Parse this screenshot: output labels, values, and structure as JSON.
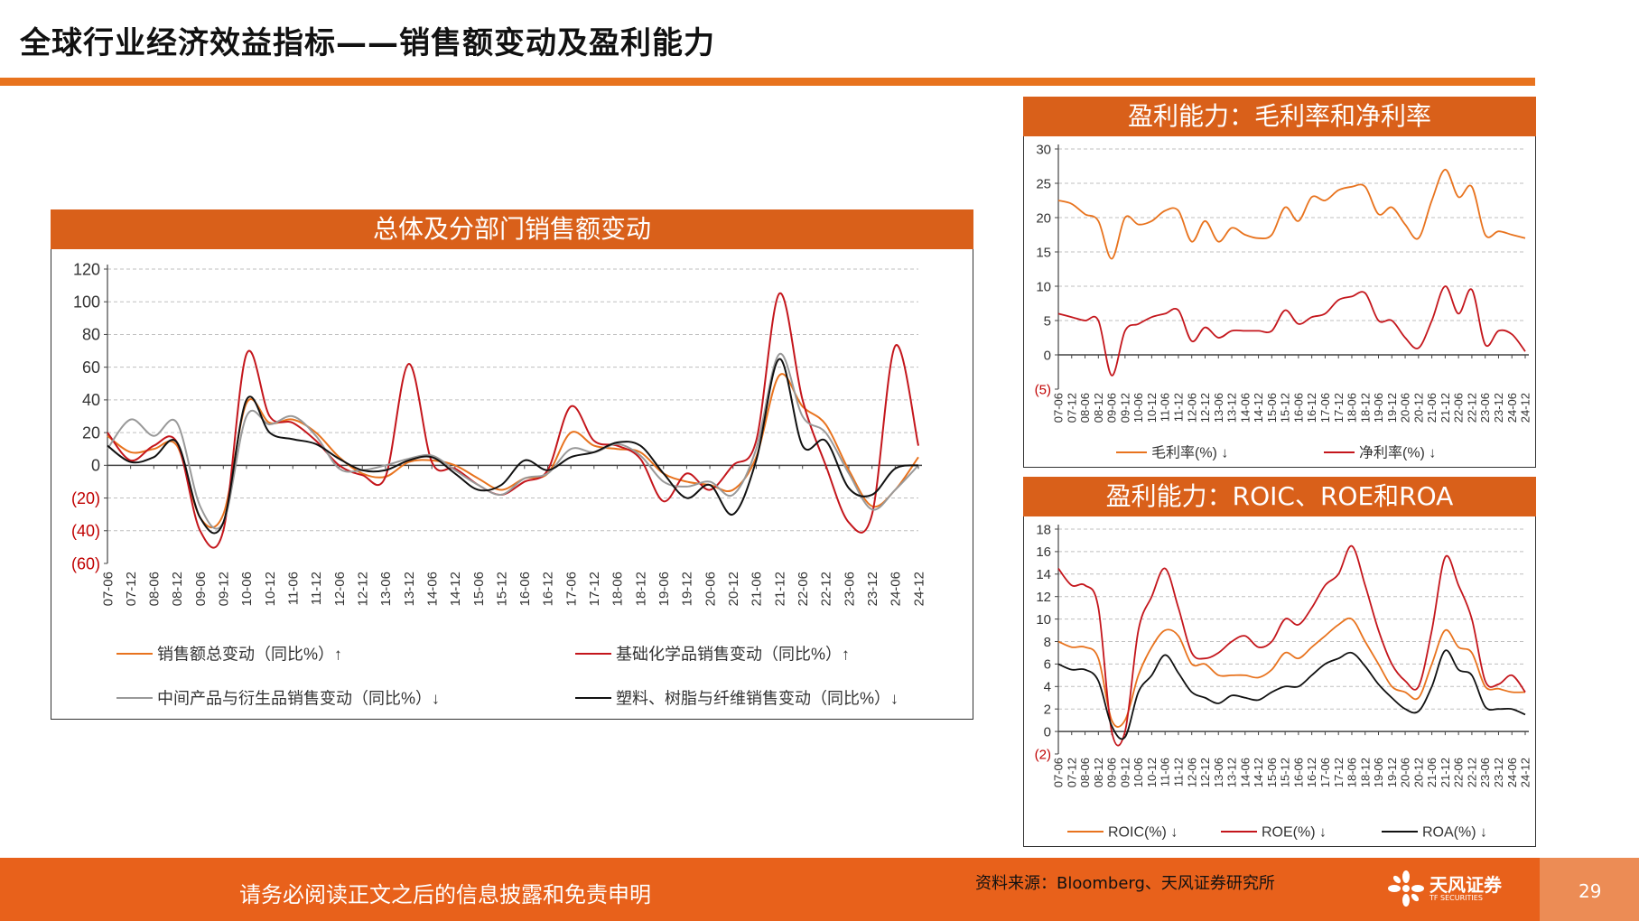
{
  "page": {
    "title": "全球行业经济效益指标——销售额变动及盈利能力",
    "footer_disclaimer": "请务必阅读正文之后的信息披露和免责申明",
    "source": "资料来源：Bloomberg、天风证券研究所",
    "logo_cn": "天风证券",
    "logo_en": "TF SECURITIES",
    "page_number": "29",
    "colors": {
      "accent": "#e8731e",
      "header": "#d9601a",
      "footer": "#e8611b"
    }
  },
  "chart_data": [
    {
      "id": "sales",
      "type": "line",
      "title": "总体及分部门销售额变动",
      "x": [
        "07-06",
        "07-12",
        "08-06",
        "08-12",
        "09-06",
        "09-12",
        "10-06",
        "10-12",
        "11-06",
        "11-12",
        "12-06",
        "12-12",
        "13-06",
        "13-12",
        "14-06",
        "14-12",
        "15-06",
        "15-12",
        "16-06",
        "16-12",
        "17-06",
        "17-12",
        "18-06",
        "18-12",
        "19-06",
        "19-12",
        "20-06",
        "20-12",
        "21-06",
        "21-12",
        "22-06",
        "22-12",
        "23-06",
        "23-12",
        "24-06",
        "24-12"
      ],
      "y_ticks": [
        "120",
        "100",
        "80",
        "60",
        "40",
        "20",
        "0",
        "(20)",
        "(40)",
        "(60)"
      ],
      "ylim": [
        -60,
        120
      ],
      "series": [
        {
          "name": "销售额总变动（同比%）↑",
          "color": "#e8731e",
          "values": [
            18,
            8,
            10,
            12,
            -32,
            -30,
            38,
            26,
            28,
            20,
            5,
            -5,
            -7,
            2,
            3,
            0,
            -8,
            -15,
            -8,
            -5,
            20,
            12,
            10,
            8,
            -5,
            -10,
            -12,
            -15,
            5,
            55,
            36,
            25,
            -3,
            -25,
            -15,
            5
          ]
        },
        {
          "name": "基础化学品销售变动（同比%）↑",
          "color": "#c4161c",
          "values": [
            20,
            3,
            12,
            14,
            -40,
            -40,
            68,
            30,
            26,
            15,
            0,
            -6,
            -7,
            62,
            2,
            -2,
            -12,
            -18,
            -10,
            -3,
            36,
            15,
            12,
            4,
            -22,
            -5,
            -15,
            0,
            15,
            105,
            40,
            0,
            -35,
            -30,
            73,
            12
          ]
        },
        {
          "name": "中间产品与衍生品销售变动（同比%）↓",
          "color": "#999999",
          "values": [
            10,
            28,
            18,
            26,
            -25,
            -35,
            30,
            25,
            30,
            18,
            -2,
            -3,
            0,
            4,
            6,
            -3,
            -12,
            -18,
            -8,
            -5,
            10,
            8,
            13,
            6,
            -10,
            -13,
            -10,
            -18,
            10,
            68,
            30,
            20,
            -5,
            -27,
            -15,
            0
          ]
        },
        {
          "name": "塑料、树脂与纤维销售变动（同比%）↓",
          "color": "#111111",
          "values": [
            12,
            2,
            5,
            14,
            -32,
            -35,
            40,
            20,
            16,
            13,
            4,
            -3,
            -3,
            3,
            5,
            -5,
            -15,
            -12,
            3,
            -3,
            5,
            8,
            14,
            12,
            -5,
            -20,
            -12,
            -30,
            3,
            65,
            12,
            15,
            -14,
            -18,
            -2,
            0
          ]
        }
      ]
    },
    {
      "id": "margins",
      "type": "line",
      "title": "盈利能力：毛利率和净利率",
      "x": [
        "07-06",
        "07-12",
        "08-06",
        "08-12",
        "09-06",
        "09-12",
        "10-06",
        "10-12",
        "11-06",
        "11-12",
        "12-06",
        "12-12",
        "13-06",
        "13-12",
        "14-06",
        "14-12",
        "15-06",
        "15-12",
        "16-06",
        "16-12",
        "17-06",
        "17-12",
        "18-06",
        "18-12",
        "19-06",
        "19-12",
        "20-06",
        "20-12",
        "21-06",
        "21-12",
        "22-06",
        "22-12",
        "23-06",
        "23-12",
        "24-06",
        "24-12"
      ],
      "y_ticks": [
        "30",
        "25",
        "20",
        "15",
        "10",
        "5",
        "0",
        "(5)"
      ],
      "ylim": [
        -5,
        30
      ],
      "series": [
        {
          "name": "毛利率(%) ↓",
          "color": "#e8731e",
          "values": [
            22.5,
            22,
            20.5,
            19.5,
            14,
            20,
            19,
            19.5,
            21,
            21,
            16.5,
            19.5,
            16.5,
            18.5,
            17.5,
            17,
            17.5,
            21.5,
            19.5,
            23,
            22.5,
            24,
            24.5,
            24.5,
            20.5,
            21.5,
            19,
            17,
            22.5,
            27,
            23,
            24.5,
            17.5,
            18,
            17.5,
            17
          ]
        },
        {
          "name": "净利率(%) ↓",
          "color": "#c4161c",
          "values": [
            6,
            5.5,
            5,
            5,
            -3,
            3.5,
            4.5,
            5.5,
            6,
            6.5,
            2,
            4,
            2.5,
            3.5,
            3.5,
            3.5,
            3.5,
            6.5,
            4.5,
            5.5,
            6,
            8,
            8.5,
            9,
            5,
            5,
            2.5,
            1,
            5,
            10,
            6,
            9.5,
            1.5,
            3.5,
            3,
            0.5
          ]
        }
      ]
    },
    {
      "id": "returns",
      "type": "line",
      "title": "盈利能力：ROIC、ROE和ROA",
      "x": [
        "07-06",
        "07-12",
        "08-06",
        "08-12",
        "09-06",
        "09-12",
        "10-06",
        "10-12",
        "11-06",
        "11-12",
        "12-06",
        "12-12",
        "13-06",
        "13-12",
        "14-06",
        "14-12",
        "15-06",
        "15-12",
        "16-06",
        "16-12",
        "17-06",
        "17-12",
        "18-06",
        "18-12",
        "19-06",
        "19-12",
        "20-06",
        "20-12",
        "21-06",
        "21-12",
        "22-06",
        "22-12",
        "23-06",
        "23-12",
        "24-06",
        "24-12"
      ],
      "y_ticks": [
        "18",
        "16",
        "14",
        "12",
        "10",
        "8",
        "6",
        "4",
        "2",
        "0",
        "(2)"
      ],
      "ylim": [
        -2,
        18
      ],
      "series": [
        {
          "name": "ROIC(%) ↓",
          "color": "#e8731e",
          "values": [
            8,
            7.5,
            7.5,
            6.5,
            1,
            1,
            5,
            7.5,
            9,
            8.5,
            6,
            6,
            5,
            5,
            5,
            4.8,
            5.5,
            7,
            6.5,
            7.5,
            8.5,
            9.5,
            10,
            8,
            6,
            4,
            3.5,
            3,
            6,
            9,
            7.5,
            7,
            4,
            3.8,
            3.5,
            3.5
          ]
        },
        {
          "name": "ROE(%) ↓",
          "color": "#c4161c",
          "values": [
            14.5,
            13,
            13,
            11,
            0,
            0,
            9,
            12,
            14.5,
            11,
            7,
            6.5,
            7,
            8,
            8.5,
            7.5,
            8,
            10,
            9.5,
            11,
            13,
            14,
            16.5,
            13,
            9,
            6,
            4.5,
            4,
            9,
            15.5,
            13,
            10,
            4.5,
            4.2,
            5,
            3.5
          ]
        },
        {
          "name": "ROA(%) ↓",
          "color": "#111111",
          "values": [
            6,
            5.5,
            5.5,
            4.5,
            0.5,
            -0.5,
            3.5,
            5,
            6.8,
            5.2,
            3.5,
            3,
            2.5,
            3.2,
            3,
            2.8,
            3.5,
            4,
            4,
            5,
            6,
            6.5,
            7,
            5.8,
            4.2,
            3,
            2,
            1.8,
            4,
            7.2,
            5.5,
            5,
            2.2,
            2,
            2,
            1.5
          ]
        }
      ]
    }
  ]
}
